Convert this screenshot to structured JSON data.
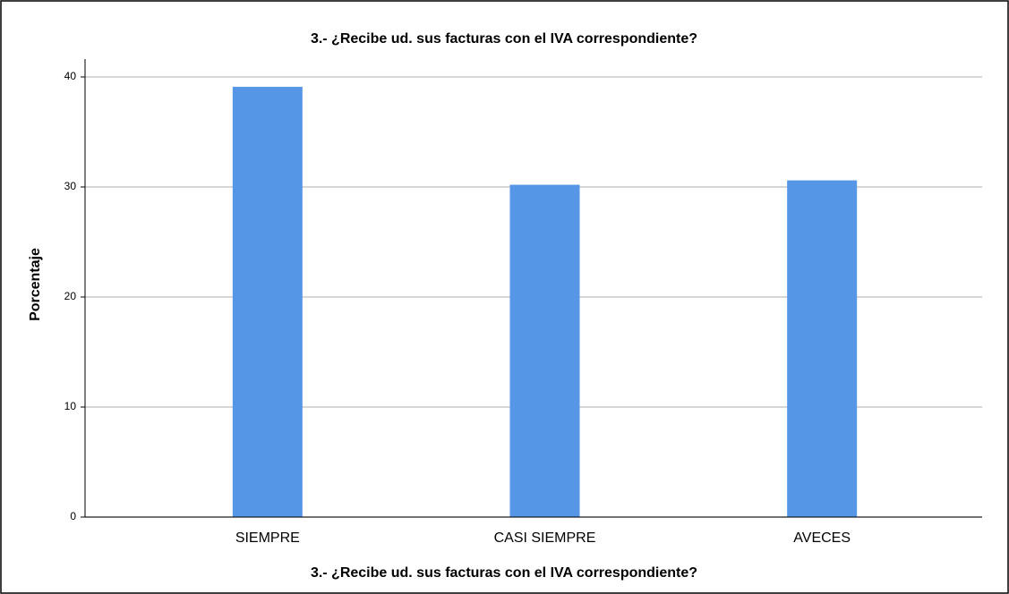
{
  "chart_data": {
    "type": "bar",
    "title": "3.- ¿Recibe ud. sus facturas  con el IVA correspondiente?",
    "x_label": "3.- ¿Recibe ud. sus facturas  con el IVA correspondiente?",
    "y_label": "Porcentaje",
    "categories": [
      "SIEMPRE",
      "CASI SIEMPRE",
      "AVECES"
    ],
    "values": [
      39.1,
      30.2,
      30.6
    ],
    "color": "#5596e6",
    "ylim": [
      0,
      40
    ],
    "yticks": [
      0,
      10,
      20,
      30,
      40
    ],
    "grid": true
  }
}
